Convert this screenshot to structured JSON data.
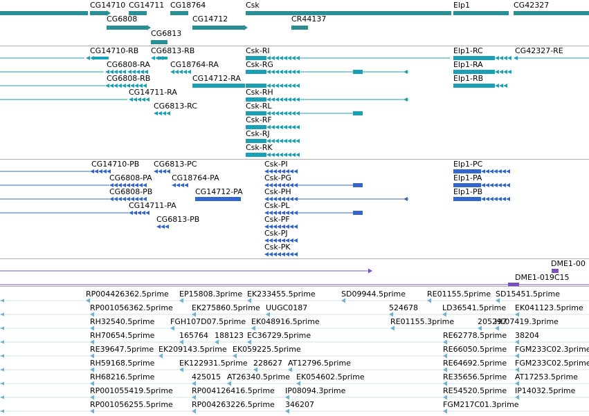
{
  "colors": {
    "gene": "#2a8f93",
    "transcript": "#1aa0b4",
    "protein": "#3366cc",
    "clone": "#7a4fc0",
    "est": "#6fb0d8",
    "separator": "#b0b0b0"
  },
  "tracks": {
    "genes": {
      "labels": [
        "CG14710",
        "CG14711",
        "CG18764",
        "Csk",
        "Elp1",
        "CG42327",
        "CG6808",
        "CG14712",
        "CR44137",
        "CG6813"
      ]
    },
    "transcripts": {
      "labels": [
        "CG14710-RB",
        "CG6813-RB",
        "Csk-RI",
        "Elp1-RC",
        "CG42327-RE",
        "CG6808-RA",
        "CG18764-RA",
        "Csk-RG",
        "Elp1-RA",
        "CG6808-RB",
        "CG14712-RA",
        "Elp1-RB",
        "CG14711-RA",
        "Csk-RH",
        "CG6813-RC",
        "Csk-RL",
        "Csk-RF",
        "Csk-RJ",
        "Csk-RK"
      ]
    },
    "proteins": {
      "labels": [
        "CG14710-PB",
        "CG6813-PC",
        "Csk-PI",
        "Elp1-PC",
        "CG6808-PA",
        "CG18764-PA",
        "Csk-PG",
        "Elp1-PA",
        "CG6808-PB",
        "CG14712-PA",
        "Csk-PH",
        "Elp1-PB",
        "CG14711-PA",
        "Csk-PL",
        "CG6813-PB",
        "Csk-PF",
        "Csk-PJ",
        "Csk-PK"
      ]
    },
    "clones": {
      "labels": [
        "DME1-00",
        "DME1-019C15"
      ]
    },
    "ests": {
      "labels": [
        "RP004426362.5prime",
        "EP15808.3prime",
        "EK233455.5prime",
        "SD09944.5prime",
        "RE01155.5prime",
        "SD15451.5prime",
        "RP001056362.5prime",
        "EK275860.5prime",
        "UUGC0187",
        "524678",
        "LD36541.5prime",
        "EK041123.5prime",
        "RH32540.5prime",
        "FGH107D07.5prime",
        "EK048916.5prime",
        "RE01155.3prime",
        "205297",
        "HL07419.3prime",
        "RH70654.5prime",
        "165764",
        "188123",
        "EC36729.5prime",
        "RE62778.5prime",
        "38204",
        "RE39647.5prime",
        "EK209143.5prime",
        "EK059225.5prime",
        "RE66050.5prime",
        "FGM233C02.3prime",
        "RH59168.5prime",
        "EK122931.5prime",
        "228627",
        "AT12796.5prime",
        "RE64692.5prime",
        "FGM233C02.5prime",
        "RH68216.5prime",
        "425015",
        "AT26340.5prime",
        "EK054602.5prime",
        "RE35656.5prime",
        "AT17253.5prime",
        "RP001055419.5prime",
        "RP004126416.5prime",
        "IP08094.3prime",
        "RE54520.5prime",
        "IP14032.5prime",
        "RP001056255.5prime",
        "RP004263226.5prime",
        "346207",
        "FGM217C01.3prime"
      ]
    }
  }
}
